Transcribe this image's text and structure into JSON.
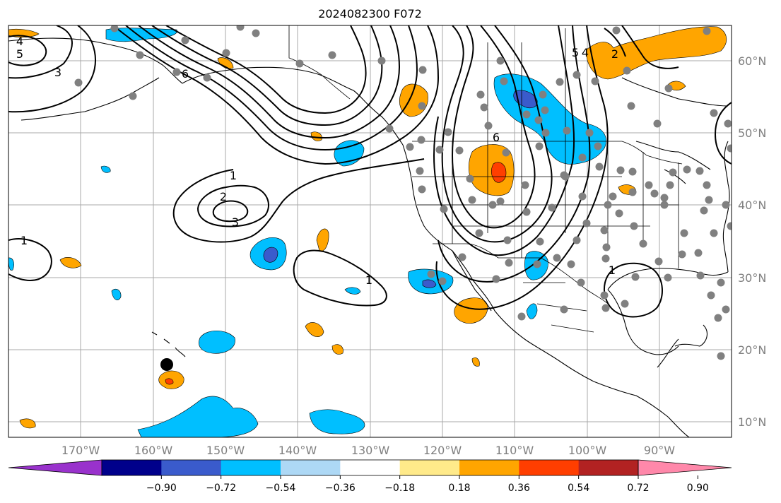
{
  "title": "2024082300 F072",
  "colors": {
    "grid": "#a8a8a8",
    "axis_label": "#7f7f7f",
    "contour": "#000000",
    "station_dot": "#808080",
    "marker": "#000000",
    "coast": "#000000"
  },
  "map": {
    "lat_labels": [
      "60°N",
      "50°N",
      "40°N",
      "30°N",
      "20°N",
      "10°N"
    ],
    "lon_labels": [
      "170°W",
      "160°W",
      "150°W",
      "140°W",
      "130°W",
      "120°W",
      "110°W",
      "100°W",
      "90°W"
    ],
    "contour_labels": [
      "4",
      "5",
      "3",
      "6",
      "1",
      "2",
      "3",
      "1",
      "1",
      "5",
      "4",
      "2",
      "6",
      "1"
    ],
    "station_count": 120
  },
  "colorbar": {
    "colors": [
      "#9932cc",
      "#00008b",
      "#3a5bcc",
      "#00bfff",
      "#add8f5",
      "#ffffff",
      "#ffea8a",
      "#ffa500",
      "#ff3e00",
      "#b22222",
      "#ff88aa"
    ],
    "tick_labels": [
      "−0.90",
      "−0.72",
      "−0.54",
      "−0.36",
      "−0.18",
      "0.18",
      "0.36",
      "0.54",
      "0.72",
      "0.90"
    ]
  }
}
